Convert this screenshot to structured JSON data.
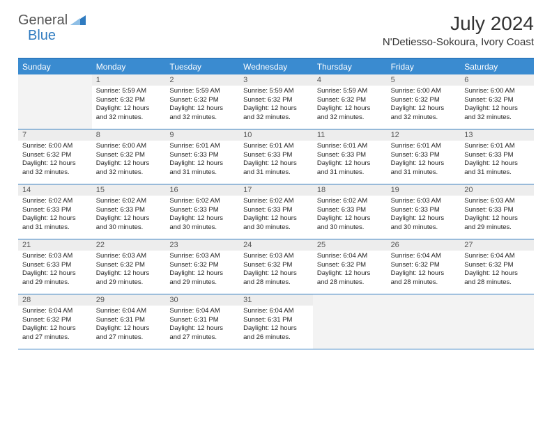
{
  "logo": {
    "main": "General",
    "accent": "Blue"
  },
  "title": "July 2024",
  "location": "N'Detiesso-Sokoura, Ivory Coast",
  "colors": {
    "header_bar": "#3a8bd0",
    "accent": "#2f7bc0",
    "daynum_bg": "#ededed",
    "text": "#222222",
    "logo_gray": "#555555"
  },
  "daysOfWeek": [
    "Sunday",
    "Monday",
    "Tuesday",
    "Wednesday",
    "Thursday",
    "Friday",
    "Saturday"
  ],
  "weeks": [
    [
      null,
      {
        "n": "1",
        "sr": "5:59 AM",
        "ss": "6:32 PM",
        "dl": "12 hours and 32 minutes."
      },
      {
        "n": "2",
        "sr": "5:59 AM",
        "ss": "6:32 PM",
        "dl": "12 hours and 32 minutes."
      },
      {
        "n": "3",
        "sr": "5:59 AM",
        "ss": "6:32 PM",
        "dl": "12 hours and 32 minutes."
      },
      {
        "n": "4",
        "sr": "5:59 AM",
        "ss": "6:32 PM",
        "dl": "12 hours and 32 minutes."
      },
      {
        "n": "5",
        "sr": "6:00 AM",
        "ss": "6:32 PM",
        "dl": "12 hours and 32 minutes."
      },
      {
        "n": "6",
        "sr": "6:00 AM",
        "ss": "6:32 PM",
        "dl": "12 hours and 32 minutes."
      }
    ],
    [
      {
        "n": "7",
        "sr": "6:00 AM",
        "ss": "6:32 PM",
        "dl": "12 hours and 32 minutes."
      },
      {
        "n": "8",
        "sr": "6:00 AM",
        "ss": "6:32 PM",
        "dl": "12 hours and 32 minutes."
      },
      {
        "n": "9",
        "sr": "6:01 AM",
        "ss": "6:33 PM",
        "dl": "12 hours and 31 minutes."
      },
      {
        "n": "10",
        "sr": "6:01 AM",
        "ss": "6:33 PM",
        "dl": "12 hours and 31 minutes."
      },
      {
        "n": "11",
        "sr": "6:01 AM",
        "ss": "6:33 PM",
        "dl": "12 hours and 31 minutes."
      },
      {
        "n": "12",
        "sr": "6:01 AM",
        "ss": "6:33 PM",
        "dl": "12 hours and 31 minutes."
      },
      {
        "n": "13",
        "sr": "6:01 AM",
        "ss": "6:33 PM",
        "dl": "12 hours and 31 minutes."
      }
    ],
    [
      {
        "n": "14",
        "sr": "6:02 AM",
        "ss": "6:33 PM",
        "dl": "12 hours and 31 minutes."
      },
      {
        "n": "15",
        "sr": "6:02 AM",
        "ss": "6:33 PM",
        "dl": "12 hours and 30 minutes."
      },
      {
        "n": "16",
        "sr": "6:02 AM",
        "ss": "6:33 PM",
        "dl": "12 hours and 30 minutes."
      },
      {
        "n": "17",
        "sr": "6:02 AM",
        "ss": "6:33 PM",
        "dl": "12 hours and 30 minutes."
      },
      {
        "n": "18",
        "sr": "6:02 AM",
        "ss": "6:33 PM",
        "dl": "12 hours and 30 minutes."
      },
      {
        "n": "19",
        "sr": "6:03 AM",
        "ss": "6:33 PM",
        "dl": "12 hours and 30 minutes."
      },
      {
        "n": "20",
        "sr": "6:03 AM",
        "ss": "6:33 PM",
        "dl": "12 hours and 29 minutes."
      }
    ],
    [
      {
        "n": "21",
        "sr": "6:03 AM",
        "ss": "6:33 PM",
        "dl": "12 hours and 29 minutes."
      },
      {
        "n": "22",
        "sr": "6:03 AM",
        "ss": "6:32 PM",
        "dl": "12 hours and 29 minutes."
      },
      {
        "n": "23",
        "sr": "6:03 AM",
        "ss": "6:32 PM",
        "dl": "12 hours and 29 minutes."
      },
      {
        "n": "24",
        "sr": "6:03 AM",
        "ss": "6:32 PM",
        "dl": "12 hours and 28 minutes."
      },
      {
        "n": "25",
        "sr": "6:04 AM",
        "ss": "6:32 PM",
        "dl": "12 hours and 28 minutes."
      },
      {
        "n": "26",
        "sr": "6:04 AM",
        "ss": "6:32 PM",
        "dl": "12 hours and 28 minutes."
      },
      {
        "n": "27",
        "sr": "6:04 AM",
        "ss": "6:32 PM",
        "dl": "12 hours and 28 minutes."
      }
    ],
    [
      {
        "n": "28",
        "sr": "6:04 AM",
        "ss": "6:32 PM",
        "dl": "12 hours and 27 minutes."
      },
      {
        "n": "29",
        "sr": "6:04 AM",
        "ss": "6:31 PM",
        "dl": "12 hours and 27 minutes."
      },
      {
        "n": "30",
        "sr": "6:04 AM",
        "ss": "6:31 PM",
        "dl": "12 hours and 27 minutes."
      },
      {
        "n": "31",
        "sr": "6:04 AM",
        "ss": "6:31 PM",
        "dl": "12 hours and 26 minutes."
      },
      null,
      null,
      null
    ]
  ],
  "labels": {
    "sunrise": "Sunrise:",
    "sunset": "Sunset:",
    "daylight": "Daylight:"
  }
}
